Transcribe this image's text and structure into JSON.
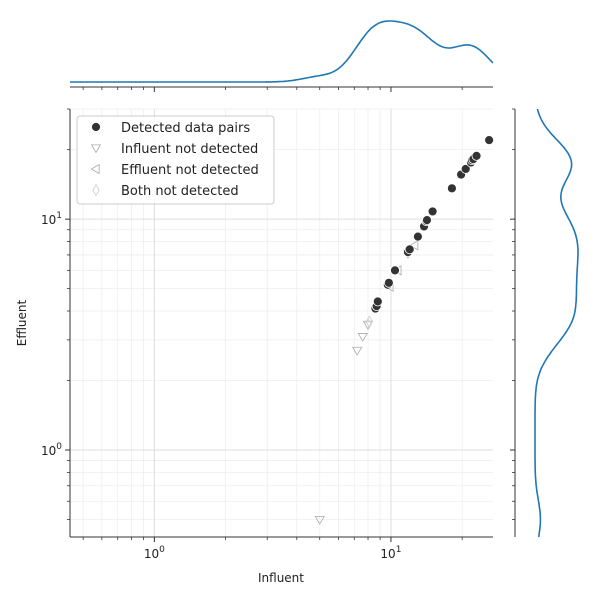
{
  "chart_data": {
    "type": "scatter",
    "xlabel": "Influent",
    "ylabel": "Effluent",
    "xscale": "log",
    "yscale": "log",
    "xlim": [
      0.44,
      27
    ],
    "ylim": [
      0.42,
      30
    ],
    "x_ticks": [
      {
        "value": 1,
        "base": "10",
        "exp": "0"
      },
      {
        "value": 10,
        "base": "10",
        "exp": "1"
      }
    ],
    "y_ticks": [
      {
        "value": 1,
        "base": "10",
        "exp": "0"
      },
      {
        "value": 10,
        "base": "10",
        "exp": "1"
      }
    ],
    "grid": true,
    "legend_position": "upper-left",
    "series": [
      {
        "name": "Detected data pairs",
        "marker": "circle",
        "color": "#333333",
        "points": [
          [
            8.6,
            4.1
          ],
          [
            8.7,
            4.2
          ],
          [
            8.8,
            4.4
          ],
          [
            9.7,
            5.2
          ],
          [
            9.8,
            5.3
          ],
          [
            10.4,
            6.0
          ],
          [
            11.8,
            7.2
          ],
          [
            12.0,
            7.4
          ],
          [
            13.0,
            8.4
          ],
          [
            13.8,
            9.3
          ],
          [
            14.1,
            9.8
          ],
          [
            14.2,
            9.9
          ],
          [
            15.0,
            10.8
          ],
          [
            18.1,
            13.6
          ],
          [
            19.8,
            15.6
          ],
          [
            20.7,
            16.5
          ],
          [
            21.8,
            17.6
          ],
          [
            22.0,
            18.0
          ],
          [
            22.3,
            18.2
          ],
          [
            23.0,
            18.8
          ],
          [
            26.0,
            22.0
          ]
        ]
      },
      {
        "name": "Influent not detected",
        "marker": "triangle-down",
        "color": "#aaaaaa",
        "points": [
          [
            5.0,
            0.5
          ],
          [
            7.2,
            2.7
          ],
          [
            7.6,
            3.1
          ],
          [
            8.0,
            3.5
          ],
          [
            11.8,
            7.1
          ]
        ]
      },
      {
        "name": "Effluent not detected",
        "marker": "triangle-left",
        "color": "#aaaaaa",
        "points": [
          [
            9.9,
            5.1
          ],
          [
            10.7,
            6.0
          ],
          [
            12.6,
            7.7
          ]
        ]
      },
      {
        "name": "Both not detected",
        "marker": "diamond",
        "color": "#cccccc",
        "points": [
          [
            8.1,
            3.6
          ],
          [
            8.0,
            3.5
          ]
        ]
      }
    ],
    "marginal_color": "#1f77b4"
  }
}
